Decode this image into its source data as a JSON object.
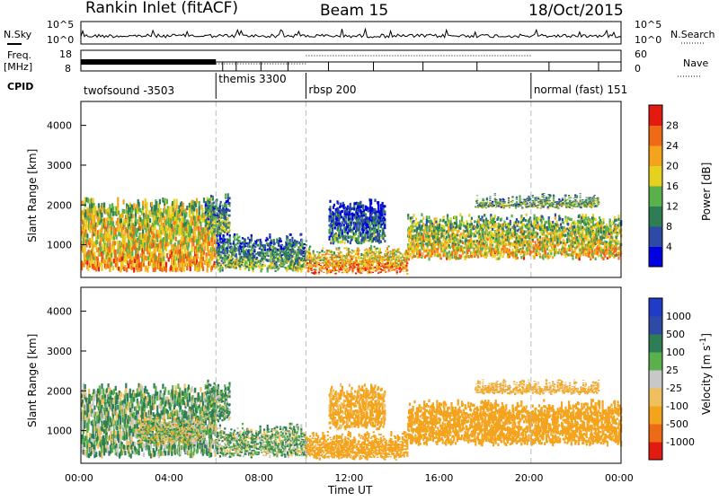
{
  "header": {
    "station": "Rankin Inlet (fitACF)",
    "beam": "Beam 15",
    "date": "18/Oct/2015"
  },
  "left_labels": {
    "nsky": "N.Sky",
    "freq": "Freq.",
    "freq_unit": "[MHz]",
    "cpid": "CPID"
  },
  "right_labels": {
    "nsearch": "N.Search",
    "nave": "Nave"
  },
  "panel_ticks": {
    "noise_left": [
      "10^5",
      "10^0"
    ],
    "noise_right": [
      "10^5",
      "10^0"
    ],
    "freq_left": [
      "18",
      "8"
    ],
    "nave_right": [
      "60",
      "0"
    ]
  },
  "cpid_segments": [
    {
      "label": "twofsound -3503",
      "start": 0,
      "end": 6
    },
    {
      "label": "themis 3300",
      "start": 6,
      "end": 10
    },
    {
      "label": "rbsp 200",
      "start": 10,
      "end": 20
    },
    {
      "label": "normal (fast) 151",
      "start": 20,
      "end": 24
    }
  ],
  "power_colorbar": {
    "label": "Power [dB]",
    "ticks": [
      "28",
      "24",
      "20",
      "16",
      "12",
      "8",
      "4"
    ],
    "colors": [
      "#0000e0",
      "#2e4aa6",
      "#2e7d55",
      "#5ab04a",
      "#e6d11f",
      "#f4a31c",
      "#ef6a16",
      "#e31a10"
    ]
  },
  "velocity_colorbar": {
    "label": "Velocity [m s",
    "label_sup": "-1",
    "label_end": "]",
    "ticks": [
      "1000",
      "500",
      "100",
      "25",
      "-25",
      "-100",
      "-500",
      "-1000"
    ],
    "colors": [
      "#e31a10",
      "#ef6a16",
      "#f4a31c",
      "#f0c060",
      "#c8c8c8",
      "#5ab04a",
      "#2e7d55",
      "#2e4aa6",
      "#1e3cc8"
    ]
  },
  "axes": {
    "ylabel": "Slant Range [km]",
    "xlabel": "Time UT",
    "yticks": [
      "4000",
      "3000",
      "2000",
      "1000"
    ],
    "xticks": [
      "00:00",
      "04:00",
      "08:00",
      "12:00",
      "16:00",
      "20:00",
      "00:00"
    ]
  },
  "chart_data": [
    {
      "type": "heatmap",
      "title": "Power [dB]",
      "xlabel": "Time UT",
      "ylabel": "Slant Range [km]",
      "xlim": [
        0,
        24
      ],
      "ylim": [
        180,
        4600
      ],
      "colorbar_range": [
        0,
        30
      ],
      "regions": [
        {
          "t0": 0.0,
          "t1": 6.0,
          "r0": 300,
          "r1": 2200,
          "level": 22
        },
        {
          "t0": 5.5,
          "t1": 6.6,
          "r0": 1200,
          "r1": 2300,
          "level": 14
        },
        {
          "t0": 6.0,
          "t1": 10.0,
          "r0": 300,
          "r1": 1300,
          "level": 14
        },
        {
          "t0": 10.0,
          "t1": 14.5,
          "r0": 250,
          "r1": 1000,
          "level": 24
        },
        {
          "t0": 11.0,
          "t1": 13.5,
          "r0": 1000,
          "r1": 2200,
          "level": 10
        },
        {
          "t0": 14.5,
          "t1": 24.0,
          "r0": 600,
          "r1": 1800,
          "level": 20
        },
        {
          "t0": 17.5,
          "t1": 23.0,
          "r0": 1900,
          "r1": 2300,
          "level": 16
        }
      ]
    },
    {
      "type": "heatmap",
      "title": "Velocity [m s-1]",
      "xlabel": "Time UT",
      "ylabel": "Slant Range [km]",
      "xlim": [
        0,
        24
      ],
      "ylim": [
        180,
        4600
      ],
      "colorbar_range": [
        -1000,
        1000
      ],
      "regions": [
        {
          "t0": 0.0,
          "t1": 6.0,
          "r0": 300,
          "r1": 2200,
          "level": 80
        },
        {
          "t0": 2.5,
          "t1": 5.5,
          "r0": 600,
          "r1": 1400,
          "level": 0
        },
        {
          "t0": 5.5,
          "t1": 6.6,
          "r0": 1200,
          "r1": 2300,
          "level": 100
        },
        {
          "t0": 6.0,
          "t1": 10.0,
          "r0": 300,
          "r1": 1200,
          "level": 60
        },
        {
          "t0": 10.0,
          "t1": 14.5,
          "r0": 250,
          "r1": 1000,
          "level": -300
        },
        {
          "t0": 11.0,
          "t1": 13.5,
          "r0": 1000,
          "r1": 2200,
          "level": -200
        },
        {
          "t0": 14.5,
          "t1": 24.0,
          "r0": 600,
          "r1": 1800,
          "level": -300
        },
        {
          "t0": 17.5,
          "t1": 23.0,
          "r0": 1900,
          "r1": 2300,
          "level": -150
        }
      ]
    }
  ]
}
